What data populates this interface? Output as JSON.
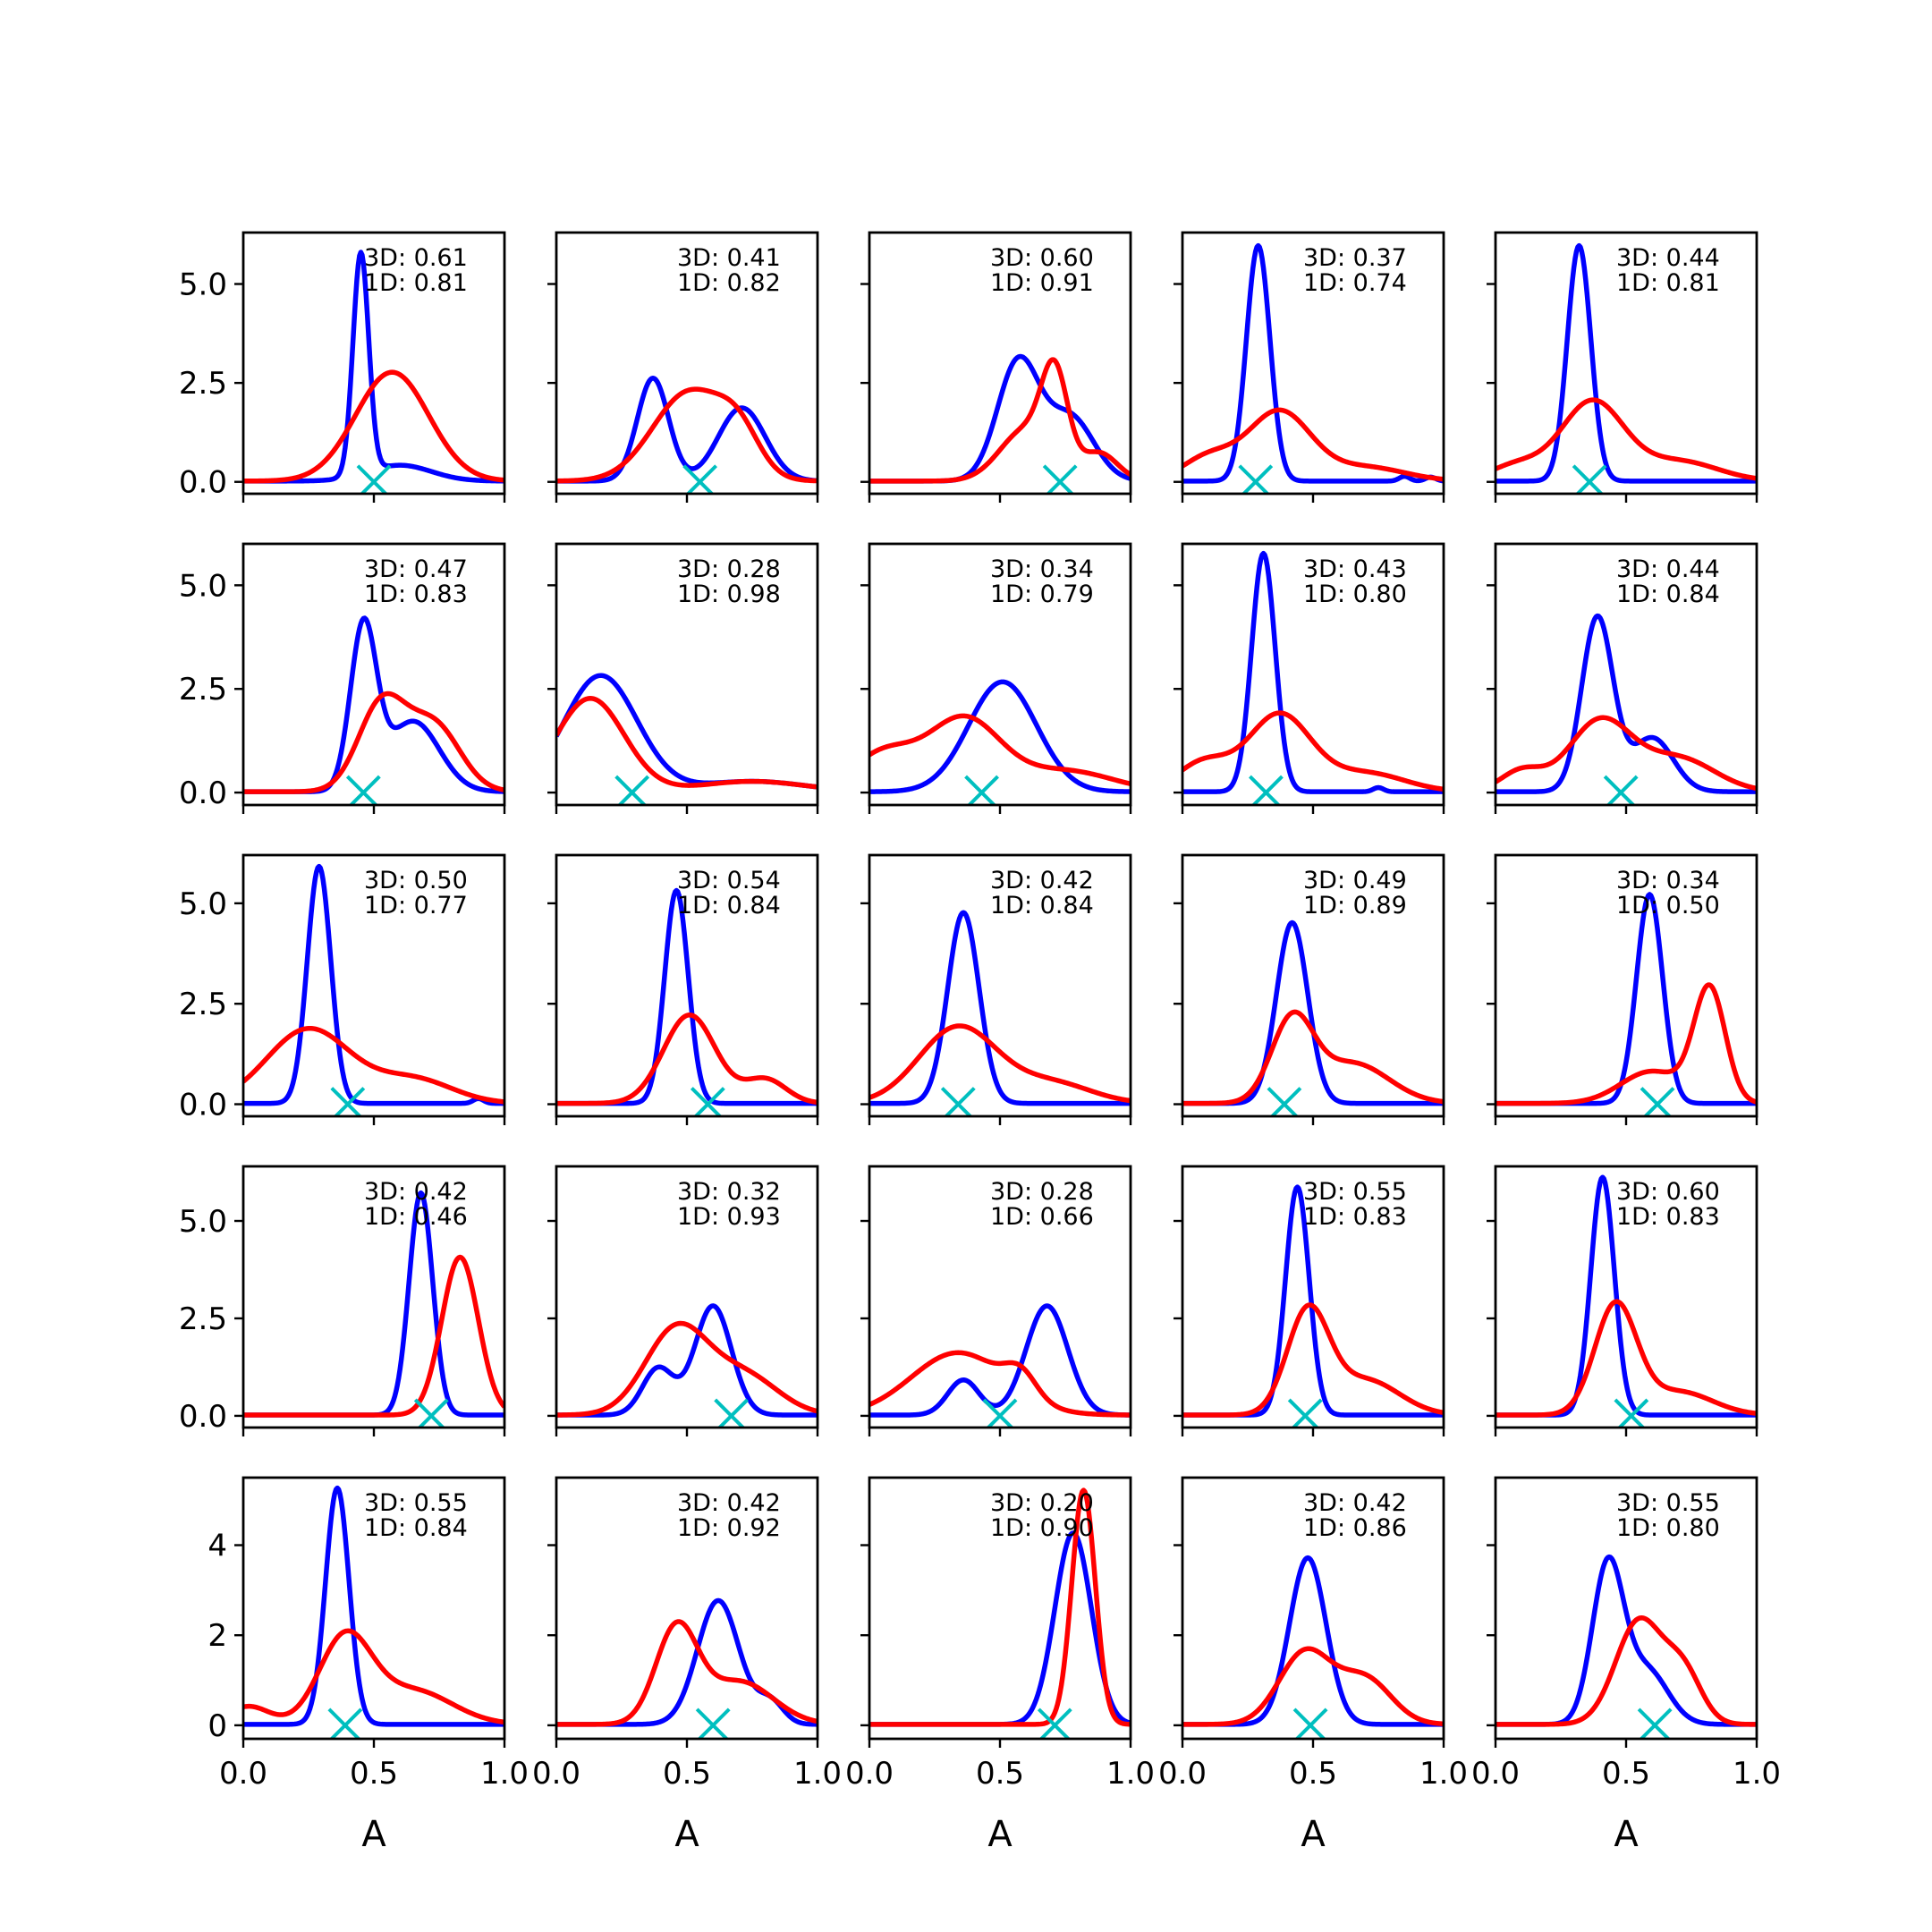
{
  "chart_data": {
    "type": "line",
    "layout": "5x5 grid of density panels",
    "xlabel": "A",
    "xlim": [
      0,
      1
    ],
    "xticks": [
      "0.0",
      "0.5",
      "1.0"
    ],
    "colors": {
      "3D": "#0000ff",
      "1D": "#ff0000",
      "marker": "#00bfbf"
    },
    "rows": [
      {
        "ylim": [
          -0.3,
          6.3
        ],
        "yticks": [
          0,
          2.5,
          5
        ],
        "ytick_labels": [
          "0.0",
          "2.5",
          "5.0"
        ]
      },
      {
        "ylim": [
          -0.3,
          6.0
        ],
        "yticks": [
          0,
          2.5,
          5
        ],
        "ytick_labels": [
          "0.0",
          "2.5",
          "5.0"
        ]
      },
      {
        "ylim": [
          -0.3,
          6.2
        ],
        "yticks": [
          0,
          2.5,
          5
        ],
        "ytick_labels": [
          "0.0",
          "2.5",
          "5.0"
        ]
      },
      {
        "ylim": [
          -0.3,
          6.4
        ],
        "yticks": [
          0,
          2.5,
          5
        ],
        "ytick_labels": [
          "0.0",
          "2.5",
          "5.0"
        ]
      },
      {
        "ylim": [
          -0.3,
          5.5
        ],
        "yticks": [
          0,
          2,
          4
        ],
        "ytick_labels": [
          "0",
          "2",
          "4"
        ]
      }
    ],
    "panels": [
      {
        "row": 0,
        "col": 0,
        "label_3d": "3D: 0.61",
        "label_1d": "1D: 0.81",
        "marker_x": 0.5,
        "blue": [
          [
            0.45,
            0.03,
            5.6
          ],
          [
            0.6,
            0.12,
            0.4
          ]
        ],
        "red": [
          [
            0.57,
            0.14,
            2.75
          ]
        ]
      },
      {
        "row": 0,
        "col": 1,
        "label_3d": "3D: 0.41",
        "label_1d": "1D: 0.82",
        "marker_x": 0.55,
        "blue": [
          [
            0.37,
            0.06,
            2.6
          ],
          [
            0.71,
            0.09,
            1.85
          ]
        ],
        "red": [
          [
            0.51,
            0.14,
            2.25
          ],
          [
            0.7,
            0.08,
            0.9
          ]
        ]
      },
      {
        "row": 0,
        "col": 2,
        "label_3d": "3D: 0.60",
        "label_1d": "1D: 0.91",
        "marker_x": 0.73,
        "blue": [
          [
            0.57,
            0.08,
            3.0
          ],
          [
            0.77,
            0.09,
            1.6
          ]
        ],
        "red": [
          [
            0.71,
            0.05,
            2.3
          ],
          [
            0.6,
            0.1,
            1.3
          ],
          [
            0.88,
            0.07,
            0.7
          ]
        ]
      },
      {
        "row": 0,
        "col": 3,
        "label_3d": "3D: 0.37",
        "label_1d": "1D: 0.74",
        "marker_x": 0.28,
        "blue": [
          [
            0.29,
            0.045,
            5.95
          ],
          [
            0.85,
            0.02,
            0.12
          ],
          [
            0.95,
            0.02,
            0.1
          ]
        ],
        "red": [
          [
            0.37,
            0.12,
            1.75
          ],
          [
            0.1,
            0.1,
            0.6
          ],
          [
            0.7,
            0.15,
            0.35
          ]
        ]
      },
      {
        "row": 0,
        "col": 4,
        "label_3d": "3D: 0.44",
        "label_1d": "1D: 0.81",
        "marker_x": 0.36,
        "blue": [
          [
            0.32,
            0.045,
            5.95
          ]
        ],
        "red": [
          [
            0.37,
            0.12,
            2.0
          ],
          [
            0.08,
            0.1,
            0.4
          ],
          [
            0.7,
            0.15,
            0.5
          ]
        ]
      },
      {
        "row": 1,
        "col": 0,
        "label_3d": "3D: 0.47",
        "label_1d": "1D: 0.83",
        "marker_x": 0.46,
        "blue": [
          [
            0.46,
            0.05,
            3.9
          ],
          [
            0.65,
            0.1,
            1.7
          ]
        ],
        "red": [
          [
            0.53,
            0.09,
            2.1
          ],
          [
            0.73,
            0.1,
            1.6
          ]
        ]
      },
      {
        "row": 1,
        "col": 1,
        "label_3d": "3D: 0.28",
        "label_1d": "1D: 0.98",
        "marker_x": 0.29,
        "blue": [
          [
            0.17,
            0.14,
            2.8
          ],
          [
            0.75,
            0.2,
            0.25
          ]
        ],
        "red": [
          [
            0.13,
            0.13,
            2.25
          ],
          [
            0.75,
            0.2,
            0.25
          ]
        ]
      },
      {
        "row": 1,
        "col": 2,
        "label_3d": "3D: 0.34",
        "label_1d": "1D: 0.79",
        "marker_x": 0.43,
        "blue": [
          [
            0.51,
            0.13,
            2.65
          ]
        ],
        "red": [
          [
            0.36,
            0.14,
            1.75
          ],
          [
            0.05,
            0.12,
            0.9
          ],
          [
            0.75,
            0.18,
            0.5
          ]
        ]
      },
      {
        "row": 1,
        "col": 3,
        "label_3d": "3D: 0.43",
        "label_1d": "1D: 0.80",
        "marker_x": 0.32,
        "blue": [
          [
            0.31,
            0.045,
            5.75
          ],
          [
            0.75,
            0.02,
            0.1
          ]
        ],
        "red": [
          [
            0.37,
            0.12,
            1.85
          ],
          [
            0.08,
            0.1,
            0.7
          ],
          [
            0.7,
            0.15,
            0.45
          ]
        ]
      },
      {
        "row": 1,
        "col": 4,
        "label_3d": "3D: 0.44",
        "label_1d": "1D: 0.84",
        "marker_x": 0.48,
        "blue": [
          [
            0.39,
            0.06,
            4.2
          ],
          [
            0.6,
            0.08,
            1.3
          ]
        ],
        "red": [
          [
            0.4,
            0.12,
            1.7
          ],
          [
            0.1,
            0.08,
            0.5
          ],
          [
            0.7,
            0.14,
            0.8
          ]
        ]
      },
      {
        "row": 2,
        "col": 0,
        "label_3d": "3D: 0.50",
        "label_1d": "1D: 0.77",
        "marker_x": 0.4,
        "blue": [
          [
            0.29,
            0.045,
            5.9
          ],
          [
            0.9,
            0.02,
            0.12
          ]
        ],
        "red": [
          [
            0.25,
            0.16,
            1.85
          ],
          [
            0.65,
            0.15,
            0.6
          ]
        ]
      },
      {
        "row": 2,
        "col": 1,
        "label_3d": "3D: 0.54",
        "label_1d": "1D: 0.84",
        "marker_x": 0.58,
        "blue": [
          [
            0.46,
            0.045,
            5.3
          ]
        ],
        "red": [
          [
            0.51,
            0.1,
            2.2
          ],
          [
            0.8,
            0.08,
            0.6
          ]
        ]
      },
      {
        "row": 2,
        "col": 2,
        "label_3d": "3D: 0.42",
        "label_1d": "1D: 0.84",
        "marker_x": 0.34,
        "blue": [
          [
            0.36,
            0.06,
            4.75
          ]
        ],
        "red": [
          [
            0.34,
            0.15,
            1.9
          ],
          [
            0.7,
            0.15,
            0.5
          ]
        ]
      },
      {
        "row": 2,
        "col": 3,
        "label_3d": "3D: 0.49",
        "label_1d": "1D: 0.89",
        "marker_x": 0.39,
        "blue": [
          [
            0.42,
            0.06,
            4.5
          ]
        ],
        "red": [
          [
            0.42,
            0.08,
            2.0
          ],
          [
            0.65,
            0.14,
            1.0
          ]
        ]
      },
      {
        "row": 2,
        "col": 4,
        "label_3d": "3D: 0.34",
        "label_1d": "1D: 0.50",
        "marker_x": 0.62,
        "blue": [
          [
            0.59,
            0.05,
            5.2
          ]
        ],
        "red": [
          [
            0.82,
            0.06,
            2.8
          ],
          [
            0.6,
            0.12,
            0.8
          ]
        ]
      },
      {
        "row": 3,
        "col": 0,
        "label_3d": "3D: 0.42",
        "label_1d": "1D: 0.46",
        "marker_x": 0.72,
        "blue": [
          [
            0.68,
            0.045,
            5.7
          ]
        ],
        "red": [
          [
            0.83,
            0.07,
            4.05
          ]
        ]
      },
      {
        "row": 3,
        "col": 1,
        "label_3d": "3D: 0.32",
        "label_1d": "1D: 0.93",
        "marker_x": 0.67,
        "blue": [
          [
            0.6,
            0.07,
            2.8
          ],
          [
            0.39,
            0.06,
            1.2
          ]
        ],
        "red": [
          [
            0.46,
            0.12,
            2.2
          ],
          [
            0.72,
            0.13,
            1.0
          ]
        ]
      },
      {
        "row": 3,
        "col": 2,
        "label_3d": "3D: 0.28",
        "label_1d": "1D: 0.66",
        "marker_x": 0.5,
        "blue": [
          [
            0.68,
            0.08,
            2.8
          ],
          [
            0.36,
            0.06,
            0.9
          ]
        ],
        "red": [
          [
            0.34,
            0.18,
            1.6
          ],
          [
            0.58,
            0.06,
            0.6
          ]
        ]
      },
      {
        "row": 3,
        "col": 3,
        "label_3d": "3D: 0.55",
        "label_1d": "1D: 0.83",
        "marker_x": 0.47,
        "blue": [
          [
            0.44,
            0.045,
            5.85
          ]
        ],
        "red": [
          [
            0.48,
            0.08,
            2.6
          ],
          [
            0.7,
            0.13,
            0.9
          ]
        ]
      },
      {
        "row": 3,
        "col": 4,
        "label_3d": "3D: 0.60",
        "label_1d": "1D: 0.83",
        "marker_x": 0.52,
        "blue": [
          [
            0.41,
            0.045,
            6.1
          ]
        ],
        "red": [
          [
            0.46,
            0.08,
            2.8
          ],
          [
            0.7,
            0.13,
            0.6
          ]
        ]
      },
      {
        "row": 4,
        "col": 0,
        "label_3d": "3D: 0.55",
        "label_1d": "1D: 0.84",
        "marker_x": 0.39,
        "blue": [
          [
            0.36,
            0.045,
            5.25
          ]
        ],
        "red": [
          [
            0.39,
            0.1,
            1.9
          ],
          [
            0.02,
            0.08,
            0.4
          ],
          [
            0.65,
            0.15,
            0.75
          ]
        ]
      },
      {
        "row": 4,
        "col": 1,
        "label_3d": "3D: 0.42",
        "label_1d": "1D: 0.92",
        "marker_x": 0.6,
        "blue": [
          [
            0.62,
            0.08,
            2.75
          ],
          [
            0.82,
            0.05,
            0.5
          ]
        ],
        "red": [
          [
            0.46,
            0.08,
            2.1
          ],
          [
            0.7,
            0.13,
            0.95
          ]
        ]
      },
      {
        "row": 4,
        "col": 2,
        "label_3d": "3D: 0.20",
        "label_1d": "1D: 0.90",
        "marker_x": 0.71,
        "blue": [
          [
            0.78,
            0.07,
            4.25
          ]
        ],
        "red": [
          [
            0.82,
            0.045,
            5.2
          ]
        ]
      },
      {
        "row": 4,
        "col": 3,
        "label_3d": "3D: 0.42",
        "label_1d": "1D: 0.86",
        "marker_x": 0.49,
        "blue": [
          [
            0.48,
            0.07,
            3.7
          ]
        ],
        "red": [
          [
            0.47,
            0.1,
            1.6
          ],
          [
            0.7,
            0.1,
            1.0
          ]
        ]
      },
      {
        "row": 4,
        "col": 4,
        "label_3d": "3D: 0.55",
        "label_1d": "1D: 0.80",
        "marker_x": 0.61,
        "blue": [
          [
            0.43,
            0.06,
            3.5
          ],
          [
            0.58,
            0.08,
            1.2
          ]
        ],
        "red": [
          [
            0.55,
            0.09,
            2.3
          ],
          [
            0.72,
            0.07,
            1.1
          ]
        ]
      }
    ]
  }
}
